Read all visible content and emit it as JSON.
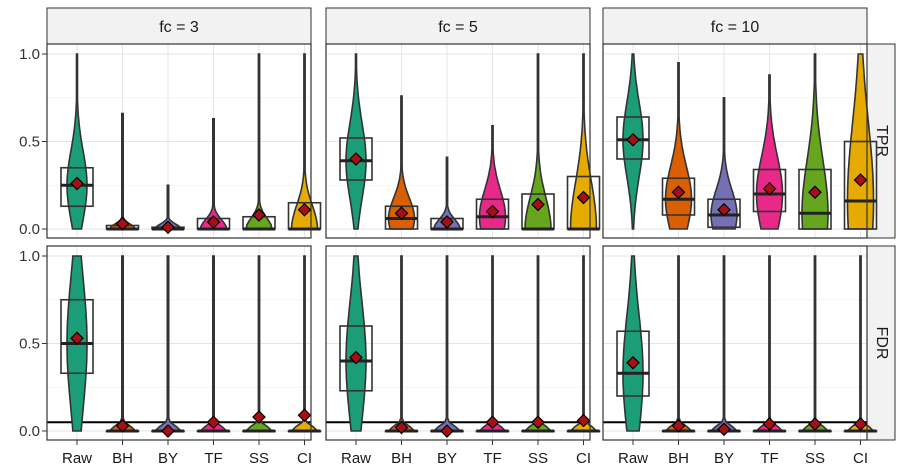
{
  "chart_data": {
    "type": "violin",
    "categories": [
      "Raw",
      "BH",
      "BY",
      "TF",
      "SS",
      "CI"
    ],
    "facet_columns": [
      "fc = 3",
      "fc = 5",
      "fc = 10"
    ],
    "facet_rows": [
      "TPR",
      "FDR"
    ],
    "ylim": [
      0,
      1
    ],
    "yticks": [
      "0.0",
      "0.5",
      "1.0"
    ],
    "grid": true,
    "reference_line_FDR": 0.05,
    "colors": {
      "Raw": "#1b9e77",
      "BH": "#d95f02",
      "BY": "#7570b3",
      "TF": "#e7298a",
      "SS": "#66a61e",
      "CI": "#e6ab02",
      "mean_marker": "#a50f15",
      "strip_bg": "#f2f2f2",
      "panel_border": "#333333"
    },
    "panels": [
      {
        "col": "fc = 3",
        "row": "TPR",
        "series": [
          {
            "category": "Raw",
            "q1": 0.13,
            "median": 0.25,
            "q3": 0.35,
            "mean": 0.26,
            "max": 1.0
          },
          {
            "category": "BH",
            "q1": 0.0,
            "median": 0.0,
            "q3": 0.02,
            "mean": 0.03,
            "max": 0.66
          },
          {
            "category": "BY",
            "q1": 0.0,
            "median": 0.0,
            "q3": 0.01,
            "mean": 0.01,
            "max": 0.25
          },
          {
            "category": "TF",
            "q1": 0.0,
            "median": 0.0,
            "q3": 0.06,
            "mean": 0.04,
            "max": 0.63
          },
          {
            "category": "SS",
            "q1": 0.0,
            "median": 0.0,
            "q3": 0.07,
            "mean": 0.08,
            "max": 1.0
          },
          {
            "category": "CI",
            "q1": 0.0,
            "median": 0.0,
            "q3": 0.15,
            "mean": 0.11,
            "max": 1.0
          }
        ]
      },
      {
        "col": "fc = 5",
        "row": "TPR",
        "series": [
          {
            "category": "Raw",
            "q1": 0.28,
            "median": 0.39,
            "q3": 0.52,
            "mean": 0.4,
            "max": 1.0
          },
          {
            "category": "BH",
            "q1": 0.0,
            "median": 0.06,
            "q3": 0.13,
            "mean": 0.09,
            "max": 0.76
          },
          {
            "category": "BY",
            "q1": 0.0,
            "median": 0.0,
            "q3": 0.06,
            "mean": 0.04,
            "max": 0.41
          },
          {
            "category": "TF",
            "q1": 0.0,
            "median": 0.07,
            "q3": 0.17,
            "mean": 0.1,
            "max": 0.59
          },
          {
            "category": "SS",
            "q1": 0.0,
            "median": 0.0,
            "q3": 0.2,
            "mean": 0.14,
            "max": 1.0
          },
          {
            "category": "CI",
            "q1": 0.0,
            "median": 0.0,
            "q3": 0.3,
            "mean": 0.18,
            "max": 1.0
          }
        ]
      },
      {
        "col": "fc = 10",
        "row": "TPR",
        "series": [
          {
            "category": "Raw",
            "q1": 0.4,
            "median": 0.51,
            "q3": 0.64,
            "mean": 0.51,
            "max": 1.0
          },
          {
            "category": "BH",
            "q1": 0.08,
            "median": 0.17,
            "q3": 0.29,
            "mean": 0.21,
            "max": 0.95
          },
          {
            "category": "BY",
            "q1": 0.01,
            "median": 0.08,
            "q3": 0.17,
            "mean": 0.11,
            "max": 0.75
          },
          {
            "category": "TF",
            "q1": 0.1,
            "median": 0.2,
            "q3": 0.34,
            "mean": 0.23,
            "max": 0.88
          },
          {
            "category": "SS",
            "q1": 0.0,
            "median": 0.09,
            "q3": 0.34,
            "mean": 0.21,
            "max": 1.0
          },
          {
            "category": "CI",
            "q1": 0.0,
            "median": 0.16,
            "q3": 0.5,
            "mean": 0.28,
            "max": 1.0
          }
        ]
      },
      {
        "col": "fc = 3",
        "row": "FDR",
        "series": [
          {
            "category": "Raw",
            "q1": 0.33,
            "median": 0.5,
            "q3": 0.75,
            "mean": 0.53,
            "max": 1.0
          },
          {
            "category": "BH",
            "q1": 0.0,
            "median": 0.0,
            "q3": 0.0,
            "mean": 0.03,
            "max": 1.0
          },
          {
            "category": "BY",
            "q1": 0.0,
            "median": 0.0,
            "q3": 0.0,
            "mean": 0.0,
            "max": 1.0
          },
          {
            "category": "TF",
            "q1": 0.0,
            "median": 0.0,
            "q3": 0.0,
            "mean": 0.05,
            "max": 1.0
          },
          {
            "category": "SS",
            "q1": 0.0,
            "median": 0.0,
            "q3": 0.0,
            "mean": 0.08,
            "max": 1.0
          },
          {
            "category": "CI",
            "q1": 0.0,
            "median": 0.0,
            "q3": 0.0,
            "mean": 0.09,
            "max": 1.0
          }
        ]
      },
      {
        "col": "fc = 5",
        "row": "FDR",
        "series": [
          {
            "category": "Raw",
            "q1": 0.23,
            "median": 0.4,
            "q3": 0.6,
            "mean": 0.42,
            "max": 1.0
          },
          {
            "category": "BH",
            "q1": 0.0,
            "median": 0.0,
            "q3": 0.0,
            "mean": 0.02,
            "max": 1.0
          },
          {
            "category": "BY",
            "q1": 0.0,
            "median": 0.0,
            "q3": 0.0,
            "mean": 0.0,
            "max": 1.0
          },
          {
            "category": "TF",
            "q1": 0.0,
            "median": 0.0,
            "q3": 0.0,
            "mean": 0.05,
            "max": 1.0
          },
          {
            "category": "SS",
            "q1": 0.0,
            "median": 0.0,
            "q3": 0.0,
            "mean": 0.05,
            "max": 1.0
          },
          {
            "category": "CI",
            "q1": 0.0,
            "median": 0.0,
            "q3": 0.0,
            "mean": 0.06,
            "max": 1.0
          }
        ]
      },
      {
        "col": "fc = 10",
        "row": "FDR",
        "series": [
          {
            "category": "Raw",
            "q1": 0.2,
            "median": 0.33,
            "q3": 0.57,
            "mean": 0.39,
            "max": 1.0
          },
          {
            "category": "BH",
            "q1": 0.0,
            "median": 0.0,
            "q3": 0.0,
            "mean": 0.03,
            "max": 1.0
          },
          {
            "category": "BY",
            "q1": 0.0,
            "median": 0.0,
            "q3": 0.0,
            "mean": 0.01,
            "max": 1.0
          },
          {
            "category": "TF",
            "q1": 0.0,
            "median": 0.0,
            "q3": 0.0,
            "mean": 0.04,
            "max": 1.0
          },
          {
            "category": "SS",
            "q1": 0.0,
            "median": 0.0,
            "q3": 0.0,
            "mean": 0.04,
            "max": 1.0
          },
          {
            "category": "CI",
            "q1": 0.0,
            "median": 0.0,
            "q3": 0.0,
            "mean": 0.04,
            "max": 1.0
          }
        ]
      }
    ]
  }
}
